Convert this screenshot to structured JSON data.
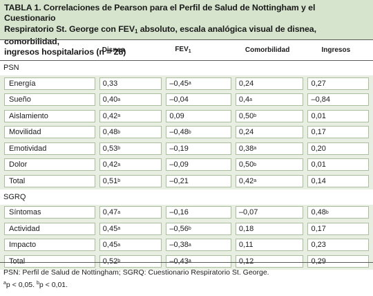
{
  "title": {
    "line1": "TABLA 1. Correlaciones de Pearson para el Perfil de Salud de Nottingham y el Cuestionario",
    "line2a": "Respiratorio St. George con FEV",
    "line2_sub": "1",
    "line2b": " absoluto, escala analógica visual de disnea, comorbilidad,",
    "line3": "ingresos hospitalarios (n = 28)"
  },
  "columns": {
    "disnea": "Disnea",
    "fev": "FEV",
    "fev_sub": "1",
    "comorbilidad": "Comorbilidad",
    "ingresos": "Ingresos"
  },
  "sections": [
    {
      "name": "PSN",
      "rows": [
        {
          "label": "Energía",
          "disnea": "0,33",
          "disnea_sup": "",
          "fev": "–0,45",
          "fev_sup": "a",
          "com": "0,24",
          "com_sup": "",
          "ing": "0,27",
          "ing_sup": ""
        },
        {
          "label": "Sueño",
          "disnea": "0,40",
          "disnea_sup": "a",
          "fev": "–0,04",
          "fev_sup": "",
          "com": "0,4",
          "com_sup": "a",
          "ing": "–0,84",
          "ing_sup": ""
        },
        {
          "label": "Aislamiento",
          "disnea": "0,42",
          "disnea_sup": "a",
          "fev": "0,09",
          "fev_sup": "",
          "com": "0,50",
          "com_sup": "b",
          "ing": "0,01",
          "ing_sup": ""
        },
        {
          "label": "Movilidad",
          "disnea": "0,48",
          "disnea_sup": "b",
          "fev": "–0,48",
          "fev_sup": "b",
          "com": "0,24",
          "com_sup": "",
          "ing": "0,17",
          "ing_sup": ""
        },
        {
          "label": "Emotividad",
          "disnea": "0,53",
          "disnea_sup": "b",
          "fev": "–0,19",
          "fev_sup": "",
          "com": "0,38",
          "com_sup": "a",
          "ing": "0,20",
          "ing_sup": ""
        },
        {
          "label": "Dolor",
          "disnea": "0,42",
          "disnea_sup": "a",
          "fev": "–0,09",
          "fev_sup": "",
          "com": "0,50",
          "com_sup": "b",
          "ing": "0,01",
          "ing_sup": ""
        },
        {
          "label": "Total",
          "disnea": "0,51",
          "disnea_sup": "b",
          "fev": "–0,21",
          "fev_sup": "",
          "com": "0,42",
          "com_sup": "a",
          "ing": "0,14",
          "ing_sup": ""
        }
      ]
    },
    {
      "name": "SGRQ",
      "rows": [
        {
          "label": "Síntomas",
          "disnea": "0,47",
          "disnea_sup": "a",
          "fev": "–0,16",
          "fev_sup": "",
          "com": "–0,07",
          "com_sup": "",
          "ing": "0,48",
          "ing_sup": "b"
        },
        {
          "label": "Actividad",
          "disnea": "0,45",
          "disnea_sup": "a",
          "fev": "–0,56",
          "fev_sup": "b",
          "com": "0,18",
          "com_sup": "",
          "ing": "0,17",
          "ing_sup": ""
        },
        {
          "label": "Impacto",
          "disnea": "0,45",
          "disnea_sup": "a",
          "fev": "–0,38",
          "fev_sup": "a",
          "com": "0,11",
          "com_sup": "",
          "ing": "0,23",
          "ing_sup": ""
        },
        {
          "label": "Total",
          "disnea": "0,52",
          "disnea_sup": "b",
          "fev": "–0,43",
          "fev_sup": "a",
          "com": "0,12",
          "com_sup": "",
          "ing": "0,29",
          "ing_sup": ""
        }
      ]
    }
  ],
  "footnote": {
    "line1": "PSN: Perfil de Salud de Nottingham; SGRQ: Cuestionario Respiratorio St. George.",
    "sup_a": "a",
    "text_a": "p < 0,05. ",
    "sup_b": "b",
    "text_b": "p < 0,01."
  },
  "colors": {
    "header_bg": "#d6e4cd",
    "row_shade": "#e8efe2",
    "box_border": "#a9be9c"
  }
}
